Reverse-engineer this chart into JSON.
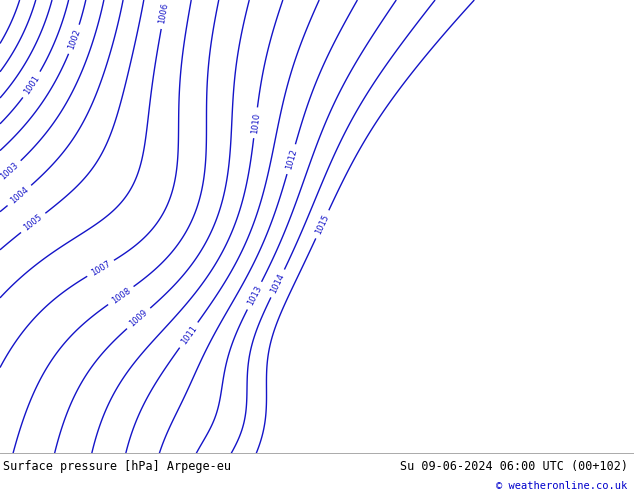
{
  "title_left": "Surface pressure [hPa] Arpege-eu",
  "title_right": "Su 09-06-2024 06:00 UTC (00+102)",
  "copyright": "© weatheronline.co.uk",
  "land_color": "#b8dca0",
  "sea_color": "#d8d8e0",
  "contour_color": "#1414c8",
  "label_color": "#1414c8",
  "border_color": "#555555",
  "footer_bg": "#e0e0e0",
  "footer_text_color": "#000000",
  "copyright_color": "#0000cc",
  "figsize": [
    6.34,
    4.9
  ],
  "dpi": 100,
  "map_extent": [
    -15,
    35,
    35,
    65
  ],
  "pressure_levels": [
    998,
    999,
    1000,
    1001,
    1002,
    1003,
    1004,
    1005,
    1006,
    1007,
    1008,
    1009,
    1010,
    1011,
    1012,
    1013,
    1014,
    1015
  ],
  "label_levels": [
    1001,
    1002,
    1003,
    1004,
    1005,
    1006,
    1007,
    1008,
    1009,
    1010,
    1011,
    1012,
    1013,
    1014,
    1015
  ]
}
